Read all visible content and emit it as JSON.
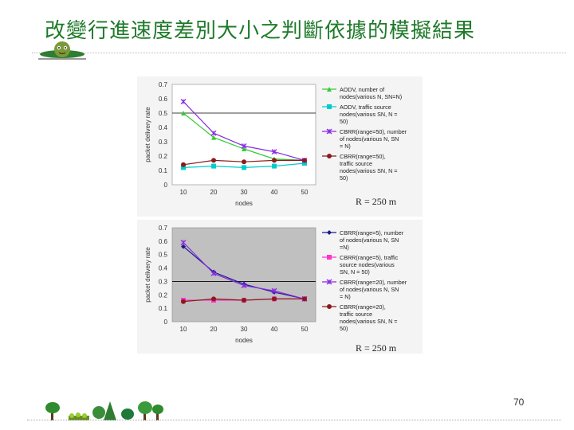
{
  "slide": {
    "title": "改變行進速度差別大小之判斷依據的模擬結果",
    "page_number": "70"
  },
  "chart_data": [
    {
      "type": "line",
      "xlabel": "nodes",
      "ylabel": "packet delivery rate",
      "x": [
        10,
        20,
        30,
        40,
        50
      ],
      "ylim": [
        0,
        0.7
      ],
      "yticks": [
        0,
        0.1,
        0.2,
        0.3,
        0.4,
        0.5,
        0.6,
        0.7
      ],
      "background": "#ffffff",
      "reference_line": 0.5,
      "r_label": "R = 250 m",
      "series": [
        {
          "name": "AODV, number of nodes(various N, SN=N)",
          "color": "#33cc33",
          "marker": "triangle",
          "values": [
            0.5,
            0.33,
            0.25,
            0.18,
            0.17
          ]
        },
        {
          "name": "AODV, traffic source nodes(various SN, N = 50)",
          "color": "#00cccc",
          "marker": "square",
          "values": [
            0.12,
            0.13,
            0.12,
            0.13,
            0.15
          ]
        },
        {
          "name": "CBRR(range=50), number of nodes(various N, SN = N)",
          "color": "#8a2be2",
          "marker": "x",
          "values": [
            0.58,
            0.36,
            0.27,
            0.23,
            0.17
          ]
        },
        {
          "name": "CBRR(range=50), traffic source nodes(various SN, N = 50)",
          "color": "#8b1a1a",
          "marker": "circle",
          "values": [
            0.14,
            0.17,
            0.16,
            0.17,
            0.17
          ]
        }
      ]
    },
    {
      "type": "line",
      "xlabel": "nodes",
      "ylabel": "packet delivery rate",
      "x": [
        10,
        20,
        30,
        40,
        50
      ],
      "ylim": [
        0,
        0.7
      ],
      "yticks": [
        0,
        0.1,
        0.2,
        0.3,
        0.4,
        0.5,
        0.6,
        0.7
      ],
      "background": "#c0c0c0",
      "reference_line": 0.3,
      "r_label": "R = 250 m",
      "series": [
        {
          "name": "CBRR(range=5), number of nodes(various N, SN =N)",
          "color": "#1a1a8b",
          "marker": "diamond",
          "values": [
            0.56,
            0.37,
            0.28,
            0.22,
            0.17
          ]
        },
        {
          "name": "CBRR(range=5), traffic source nodes(various SN, N = 50)",
          "color": "#ff33cc",
          "marker": "square",
          "values": [
            0.16,
            0.16,
            0.16,
            0.17,
            0.17
          ]
        },
        {
          "name": "CBRR(range=20), number of nodes(various N, SN = N)",
          "color": "#8a2be2",
          "marker": "x",
          "values": [
            0.59,
            0.36,
            0.27,
            0.23,
            0.17
          ]
        },
        {
          "name": "CBRR(range=20), traffic source nodes(various SN, N = 50)",
          "color": "#8b1a1a",
          "marker": "circle",
          "values": [
            0.15,
            0.17,
            0.16,
            0.17,
            0.17
          ]
        }
      ]
    }
  ]
}
